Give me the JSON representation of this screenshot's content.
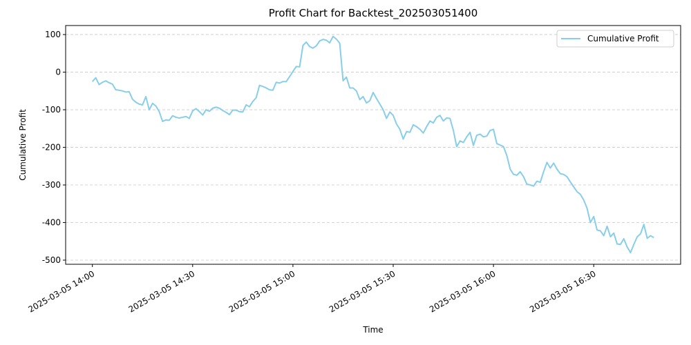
{
  "chart_data": {
    "type": "line",
    "title": "Profit Chart for Backtest_202503051400",
    "x_label": "Time",
    "y_label": "Cumulative Profit",
    "x": [
      "2025-03-05 14:00",
      "2025-03-05 14:01",
      "2025-03-05 14:02",
      "2025-03-05 14:03",
      "2025-03-05 14:04",
      "2025-03-05 14:05",
      "2025-03-05 14:06",
      "2025-03-05 14:07",
      "2025-03-05 14:08",
      "2025-03-05 14:09",
      "2025-03-05 14:10",
      "2025-03-05 14:11",
      "2025-03-05 14:12",
      "2025-03-05 14:13",
      "2025-03-05 14:14",
      "2025-03-05 14:15",
      "2025-03-05 14:16",
      "2025-03-05 14:17",
      "2025-03-05 14:18",
      "2025-03-05 14:19",
      "2025-03-05 14:20",
      "2025-03-05 14:21",
      "2025-03-05 14:22",
      "2025-03-05 14:23",
      "2025-03-05 14:24",
      "2025-03-05 14:25",
      "2025-03-05 14:26",
      "2025-03-05 14:27",
      "2025-03-05 14:28",
      "2025-03-05 14:29",
      "2025-03-05 14:30",
      "2025-03-05 14:31",
      "2025-03-05 14:32",
      "2025-03-05 14:33",
      "2025-03-05 14:34",
      "2025-03-05 14:35",
      "2025-03-05 14:36",
      "2025-03-05 14:37",
      "2025-03-05 14:38",
      "2025-03-05 14:39",
      "2025-03-05 14:40",
      "2025-03-05 14:41",
      "2025-03-05 14:42",
      "2025-03-05 14:43",
      "2025-03-05 14:44",
      "2025-03-05 14:45",
      "2025-03-05 14:46",
      "2025-03-05 14:47",
      "2025-03-05 14:48",
      "2025-03-05 14:49",
      "2025-03-05 14:50",
      "2025-03-05 14:51",
      "2025-03-05 14:52",
      "2025-03-05 14:53",
      "2025-03-05 14:54",
      "2025-03-05 14:55",
      "2025-03-05 14:56",
      "2025-03-05 14:57",
      "2025-03-05 14:58",
      "2025-03-05 14:59",
      "2025-03-05 15:00",
      "2025-03-05 15:01",
      "2025-03-05 15:02",
      "2025-03-05 15:03",
      "2025-03-05 15:04",
      "2025-03-05 15:05",
      "2025-03-05 15:06",
      "2025-03-05 15:07",
      "2025-03-05 15:08",
      "2025-03-05 15:09",
      "2025-03-05 15:10",
      "2025-03-05 15:11",
      "2025-03-05 15:12",
      "2025-03-05 15:13",
      "2025-03-05 15:14",
      "2025-03-05 15:15",
      "2025-03-05 15:16",
      "2025-03-05 15:17",
      "2025-03-05 15:18",
      "2025-03-05 15:19",
      "2025-03-05 15:20",
      "2025-03-05 15:21",
      "2025-03-05 15:22",
      "2025-03-05 15:23",
      "2025-03-05 15:24",
      "2025-03-05 15:25",
      "2025-03-05 15:26",
      "2025-03-05 15:27",
      "2025-03-05 15:28",
      "2025-03-05 15:29",
      "2025-03-05 15:30",
      "2025-03-05 15:31",
      "2025-03-05 15:32",
      "2025-03-05 15:33",
      "2025-03-05 15:34",
      "2025-03-05 15:35",
      "2025-03-05 15:36",
      "2025-03-05 15:37",
      "2025-03-05 15:38",
      "2025-03-05 15:39",
      "2025-03-05 15:40",
      "2025-03-05 15:41",
      "2025-03-05 15:42",
      "2025-03-05 15:43",
      "2025-03-05 15:44",
      "2025-03-05 15:45",
      "2025-03-05 15:46",
      "2025-03-05 15:47",
      "2025-03-05 15:48",
      "2025-03-05 15:49",
      "2025-03-05 15:50",
      "2025-03-05 15:51",
      "2025-03-05 15:52",
      "2025-03-05 15:53",
      "2025-03-05 15:54",
      "2025-03-05 15:55",
      "2025-03-05 15:56",
      "2025-03-05 15:57",
      "2025-03-05 15:58",
      "2025-03-05 15:59",
      "2025-03-05 16:00",
      "2025-03-05 16:01",
      "2025-03-05 16:02",
      "2025-03-05 16:03",
      "2025-03-05 16:04",
      "2025-03-05 16:05",
      "2025-03-05 16:06",
      "2025-03-05 16:07",
      "2025-03-05 16:08",
      "2025-03-05 16:09",
      "2025-03-05 16:10",
      "2025-03-05 16:11",
      "2025-03-05 16:12",
      "2025-03-05 16:13",
      "2025-03-05 16:14",
      "2025-03-05 16:15",
      "2025-03-05 16:16",
      "2025-03-05 16:17",
      "2025-03-05 16:18",
      "2025-03-05 16:19",
      "2025-03-05 16:20",
      "2025-03-05 16:21",
      "2025-03-05 16:22",
      "2025-03-05 16:23",
      "2025-03-05 16:24",
      "2025-03-05 16:25",
      "2025-03-05 16:26",
      "2025-03-05 16:27",
      "2025-03-05 16:28",
      "2025-03-05 16:29",
      "2025-03-05 16:30",
      "2025-03-05 16:31",
      "2025-03-05 16:32",
      "2025-03-05 16:33",
      "2025-03-05 16:34",
      "2025-03-05 16:35",
      "2025-03-05 16:36",
      "2025-03-05 16:37",
      "2025-03-05 16:38",
      "2025-03-05 16:39",
      "2025-03-05 16:40",
      "2025-03-05 16:41",
      "2025-03-05 16:42",
      "2025-03-05 16:43",
      "2025-03-05 16:44",
      "2025-03-05 16:45",
      "2025-03-05 16:46",
      "2025-03-05 16:47",
      "2025-03-05 16:48"
    ],
    "series": [
      {
        "name": "Cumulative Profit",
        "color": "#87ceeb",
        "values": [
          -25,
          -15,
          -33,
          -27,
          -23,
          -28,
          -32,
          -47,
          -48,
          -50,
          -53,
          -52,
          -72,
          -80,
          -85,
          -87,
          -65,
          -100,
          -83,
          -90,
          -105,
          -131,
          -127,
          -128,
          -116,
          -120,
          -122,
          -120,
          -118,
          -123,
          -103,
          -97,
          -105,
          -114,
          -100,
          -104,
          -96,
          -93,
          -96,
          -102,
          -107,
          -113,
          -101,
          -101,
          -105,
          -106,
          -87,
          -92,
          -78,
          -68,
          -35,
          -38,
          -42,
          -47,
          -48,
          -27,
          -29,
          -25,
          -25,
          -12,
          2,
          15,
          14,
          71,
          80,
          68,
          64,
          70,
          83,
          87,
          85,
          78,
          95,
          88,
          77,
          -23,
          -13,
          -42,
          -42,
          -50,
          -73,
          -65,
          -82,
          -76,
          -54,
          -70,
          -85,
          -100,
          -123,
          -106,
          -115,
          -138,
          -152,
          -178,
          -158,
          -160,
          -140,
          -145,
          -152,
          -162,
          -145,
          -130,
          -135,
          -120,
          -115,
          -130,
          -122,
          -123,
          -155,
          -198,
          -183,
          -187,
          -172,
          -160,
          -195,
          -168,
          -165,
          -172,
          -170,
          -155,
          -152,
          -190,
          -194,
          -198,
          -222,
          -258,
          -272,
          -274,
          -265,
          -278,
          -298,
          -300,
          -303,
          -290,
          -293,
          -265,
          -240,
          -255,
          -242,
          -258,
          -270,
          -272,
          -278,
          -292,
          -305,
          -318,
          -325,
          -340,
          -362,
          -400,
          -384,
          -420,
          -422,
          -435,
          -410,
          -438,
          -428,
          -457,
          -458,
          -443,
          -465,
          -480,
          -458,
          -438,
          -430,
          -405,
          -442,
          -435,
          -440
        ]
      }
    ],
    "xlim": [
      "2025-03-05 13:52",
      "2025-03-05 16:56"
    ],
    "xticks": [
      "2025-03-05 14:00",
      "2025-03-05 14:30",
      "2025-03-05 15:00",
      "2025-03-05 15:30",
      "2025-03-05 16:00",
      "2025-03-05 16:30"
    ],
    "ylim": [
      -511,
      124
    ],
    "yticks": [
      -500,
      -400,
      -300,
      -200,
      -100,
      0,
      100
    ],
    "grid": true,
    "legend": "upper right"
  }
}
